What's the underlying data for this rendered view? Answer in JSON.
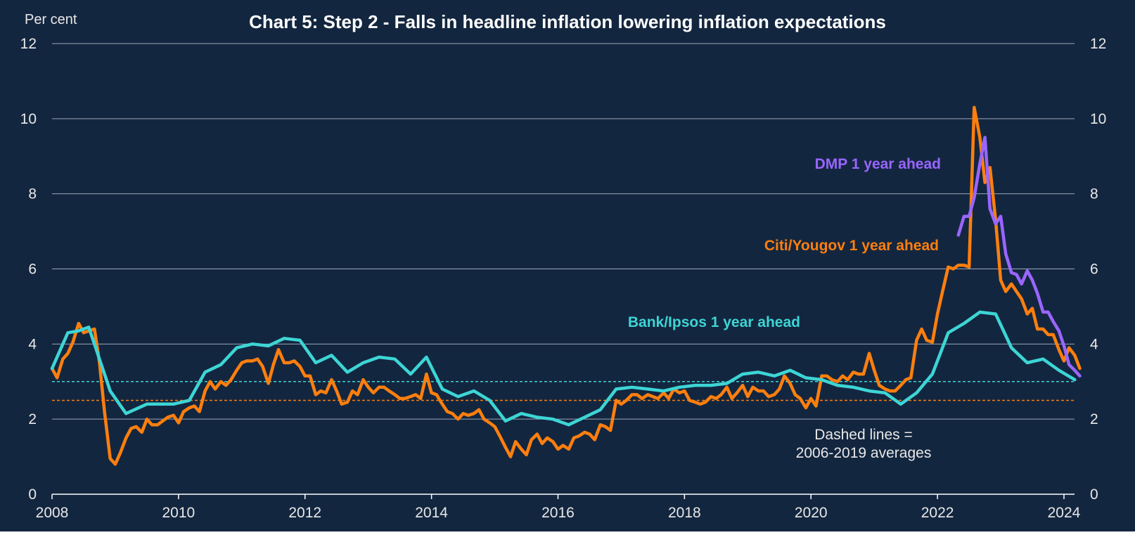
{
  "chart_data": {
    "type": "line",
    "title": "Chart 5: Step 2 - Falls in headline inflation lowering inflation expectations",
    "units_label": "Per cent",
    "xlim": [
      2008.0,
      2024.25
    ],
    "ylim": [
      0,
      12
    ],
    "x_ticks": [
      "2008",
      "2010",
      "2012",
      "2014",
      "2016",
      "2018",
      "2020",
      "2022",
      "2024"
    ],
    "y_ticks": [
      "0",
      "2",
      "4",
      "6",
      "8",
      "10",
      "12"
    ],
    "grid": true,
    "series": [
      {
        "name": "Citi/Yougov 1 year ahead",
        "color": "#ff7f0e",
        "points": [
          [
            2008.0,
            3.35
          ],
          [
            2008.08,
            3.1
          ],
          [
            2008.17,
            3.6
          ],
          [
            2008.25,
            3.75
          ],
          [
            2008.33,
            4.05
          ],
          [
            2008.42,
            4.55
          ],
          [
            2008.5,
            4.3
          ],
          [
            2008.58,
            4.35
          ],
          [
            2008.67,
            4.4
          ],
          [
            2008.75,
            3.5
          ],
          [
            2008.83,
            2.2
          ],
          [
            2008.92,
            0.95
          ],
          [
            2009.0,
            0.8
          ],
          [
            2009.08,
            1.1
          ],
          [
            2009.17,
            1.5
          ],
          [
            2009.25,
            1.75
          ],
          [
            2009.33,
            1.8
          ],
          [
            2009.42,
            1.65
          ],
          [
            2009.5,
            2.0
          ],
          [
            2009.58,
            1.85
          ],
          [
            2009.67,
            1.85
          ],
          [
            2009.75,
            1.95
          ],
          [
            2009.83,
            2.05
          ],
          [
            2009.92,
            2.1
          ],
          [
            2010.0,
            1.9
          ],
          [
            2010.08,
            2.2
          ],
          [
            2010.17,
            2.3
          ],
          [
            2010.25,
            2.35
          ],
          [
            2010.33,
            2.2
          ],
          [
            2010.42,
            2.75
          ],
          [
            2010.5,
            3.0
          ],
          [
            2010.58,
            2.8
          ],
          [
            2010.67,
            3.0
          ],
          [
            2010.75,
            2.9
          ],
          [
            2010.83,
            3.05
          ],
          [
            2010.92,
            3.3
          ],
          [
            2011.0,
            3.5
          ],
          [
            2011.08,
            3.55
          ],
          [
            2011.17,
            3.55
          ],
          [
            2011.25,
            3.6
          ],
          [
            2011.33,
            3.4
          ],
          [
            2011.42,
            2.95
          ],
          [
            2011.5,
            3.45
          ],
          [
            2011.58,
            3.85
          ],
          [
            2011.67,
            3.5
          ],
          [
            2011.75,
            3.5
          ],
          [
            2011.83,
            3.55
          ],
          [
            2011.92,
            3.4
          ],
          [
            2012.0,
            3.15
          ],
          [
            2012.08,
            3.15
          ],
          [
            2012.17,
            2.65
          ],
          [
            2012.25,
            2.75
          ],
          [
            2012.33,
            2.7
          ],
          [
            2012.42,
            3.05
          ],
          [
            2012.5,
            2.75
          ],
          [
            2012.58,
            2.4
          ],
          [
            2012.67,
            2.45
          ],
          [
            2012.75,
            2.75
          ],
          [
            2012.83,
            2.65
          ],
          [
            2012.92,
            3.05
          ],
          [
            2013.0,
            2.85
          ],
          [
            2013.08,
            2.7
          ],
          [
            2013.17,
            2.85
          ],
          [
            2013.25,
            2.85
          ],
          [
            2013.33,
            2.75
          ],
          [
            2013.42,
            2.65
          ],
          [
            2013.5,
            2.55
          ],
          [
            2013.58,
            2.55
          ],
          [
            2013.67,
            2.6
          ],
          [
            2013.75,
            2.65
          ],
          [
            2013.83,
            2.55
          ],
          [
            2013.92,
            3.2
          ],
          [
            2014.0,
            2.7
          ],
          [
            2014.08,
            2.65
          ],
          [
            2014.17,
            2.4
          ],
          [
            2014.25,
            2.2
          ],
          [
            2014.33,
            2.15
          ],
          [
            2014.42,
            2.0
          ],
          [
            2014.5,
            2.15
          ],
          [
            2014.58,
            2.1
          ],
          [
            2014.67,
            2.15
          ],
          [
            2014.75,
            2.25
          ],
          [
            2014.83,
            2.0
          ],
          [
            2014.92,
            1.9
          ],
          [
            2015.0,
            1.8
          ],
          [
            2015.08,
            1.55
          ],
          [
            2015.17,
            1.25
          ],
          [
            2015.25,
            1.0
          ],
          [
            2015.33,
            1.4
          ],
          [
            2015.42,
            1.2
          ],
          [
            2015.5,
            1.05
          ],
          [
            2015.58,
            1.45
          ],
          [
            2015.67,
            1.6
          ],
          [
            2015.75,
            1.35
          ],
          [
            2015.83,
            1.5
          ],
          [
            2015.92,
            1.4
          ],
          [
            2016.0,
            1.2
          ],
          [
            2016.08,
            1.3
          ],
          [
            2016.17,
            1.2
          ],
          [
            2016.25,
            1.5
          ],
          [
            2016.33,
            1.55
          ],
          [
            2016.42,
            1.65
          ],
          [
            2016.5,
            1.6
          ],
          [
            2016.58,
            1.45
          ],
          [
            2016.67,
            1.85
          ],
          [
            2016.75,
            1.8
          ],
          [
            2016.83,
            1.7
          ],
          [
            2016.92,
            2.5
          ],
          [
            2017.0,
            2.4
          ],
          [
            2017.08,
            2.5
          ],
          [
            2017.17,
            2.65
          ],
          [
            2017.25,
            2.65
          ],
          [
            2017.33,
            2.55
          ],
          [
            2017.42,
            2.65
          ],
          [
            2017.5,
            2.6
          ],
          [
            2017.58,
            2.55
          ],
          [
            2017.67,
            2.7
          ],
          [
            2017.75,
            2.55
          ],
          [
            2017.83,
            2.8
          ],
          [
            2017.92,
            2.7
          ],
          [
            2018.0,
            2.75
          ],
          [
            2018.08,
            2.5
          ],
          [
            2018.17,
            2.45
          ],
          [
            2018.25,
            2.4
          ],
          [
            2018.33,
            2.45
          ],
          [
            2018.42,
            2.6
          ],
          [
            2018.5,
            2.55
          ],
          [
            2018.58,
            2.65
          ],
          [
            2018.67,
            2.85
          ],
          [
            2018.75,
            2.55
          ],
          [
            2018.83,
            2.7
          ],
          [
            2018.92,
            2.9
          ],
          [
            2019.0,
            2.6
          ],
          [
            2019.08,
            2.85
          ],
          [
            2019.17,
            2.75
          ],
          [
            2019.25,
            2.75
          ],
          [
            2019.33,
            2.6
          ],
          [
            2019.42,
            2.65
          ],
          [
            2019.5,
            2.8
          ],
          [
            2019.58,
            3.15
          ],
          [
            2019.67,
            2.95
          ],
          [
            2019.75,
            2.65
          ],
          [
            2019.83,
            2.55
          ],
          [
            2019.92,
            2.3
          ],
          [
            2020.0,
            2.55
          ],
          [
            2020.08,
            2.35
          ],
          [
            2020.17,
            3.15
          ],
          [
            2020.25,
            3.15
          ],
          [
            2020.33,
            3.05
          ],
          [
            2020.42,
            3.0
          ],
          [
            2020.5,
            3.15
          ],
          [
            2020.58,
            3.05
          ],
          [
            2020.67,
            3.25
          ],
          [
            2020.75,
            3.2
          ],
          [
            2020.83,
            3.2
          ],
          [
            2020.92,
            3.75
          ],
          [
            2021.0,
            3.3
          ],
          [
            2021.08,
            2.9
          ],
          [
            2021.17,
            2.8
          ],
          [
            2021.25,
            2.75
          ],
          [
            2021.33,
            2.75
          ],
          [
            2021.42,
            2.9
          ],
          [
            2021.5,
            3.05
          ],
          [
            2021.58,
            3.1
          ],
          [
            2021.67,
            4.1
          ],
          [
            2021.75,
            4.4
          ],
          [
            2021.83,
            4.1
          ],
          [
            2021.92,
            4.05
          ],
          [
            2022.0,
            4.8
          ],
          [
            2022.08,
            5.4
          ],
          [
            2022.17,
            6.05
          ],
          [
            2022.25,
            6.0
          ],
          [
            2022.33,
            6.1
          ],
          [
            2022.42,
            6.1
          ],
          [
            2022.5,
            6.05
          ],
          [
            2022.58,
            10.3
          ],
          [
            2022.67,
            9.5
          ],
          [
            2022.75,
            8.3
          ],
          [
            2022.83,
            8.7
          ],
          [
            2022.92,
            7.3
          ],
          [
            2023.0,
            5.7
          ],
          [
            2023.08,
            5.4
          ],
          [
            2023.17,
            5.6
          ],
          [
            2023.25,
            5.4
          ],
          [
            2023.33,
            5.2
          ],
          [
            2023.42,
            4.8
          ],
          [
            2023.5,
            4.95
          ],
          [
            2023.58,
            4.4
          ],
          [
            2023.67,
            4.4
          ],
          [
            2023.75,
            4.25
          ],
          [
            2023.83,
            4.25
          ],
          [
            2023.92,
            3.85
          ],
          [
            2024.0,
            3.55
          ],
          [
            2024.08,
            3.9
          ],
          [
            2024.17,
            3.7
          ],
          [
            2024.25,
            3.35
          ]
        ]
      },
      {
        "name": "Bank/Ipsos 1 year ahead",
        "color": "#3dd5d5",
        "points": [
          [
            2008.0,
            3.35
          ],
          [
            2008.25,
            4.3
          ],
          [
            2008.42,
            4.35
          ],
          [
            2008.58,
            4.45
          ],
          [
            2008.92,
            2.75
          ],
          [
            2009.17,
            2.15
          ],
          [
            2009.5,
            2.4
          ],
          [
            2009.92,
            2.4
          ],
          [
            2010.17,
            2.5
          ],
          [
            2010.42,
            3.25
          ],
          [
            2010.67,
            3.45
          ],
          [
            2010.92,
            3.9
          ],
          [
            2011.17,
            4.0
          ],
          [
            2011.42,
            3.95
          ],
          [
            2011.67,
            4.15
          ],
          [
            2011.92,
            4.1
          ],
          [
            2012.17,
            3.5
          ],
          [
            2012.42,
            3.7
          ],
          [
            2012.67,
            3.25
          ],
          [
            2012.92,
            3.5
          ],
          [
            2013.17,
            3.65
          ],
          [
            2013.42,
            3.6
          ],
          [
            2013.67,
            3.2
          ],
          [
            2013.92,
            3.65
          ],
          [
            2014.17,
            2.8
          ],
          [
            2014.42,
            2.6
          ],
          [
            2014.67,
            2.75
          ],
          [
            2014.92,
            2.5
          ],
          [
            2015.17,
            1.95
          ],
          [
            2015.42,
            2.15
          ],
          [
            2015.67,
            2.05
          ],
          [
            2015.92,
            2.0
          ],
          [
            2016.17,
            1.85
          ],
          [
            2016.42,
            2.05
          ],
          [
            2016.67,
            2.25
          ],
          [
            2016.92,
            2.8
          ],
          [
            2017.17,
            2.85
          ],
          [
            2017.42,
            2.8
          ],
          [
            2017.67,
            2.75
          ],
          [
            2017.92,
            2.85
          ],
          [
            2018.17,
            2.9
          ],
          [
            2018.42,
            2.9
          ],
          [
            2018.67,
            2.95
          ],
          [
            2018.92,
            3.2
          ],
          [
            2019.17,
            3.25
          ],
          [
            2019.42,
            3.15
          ],
          [
            2019.67,
            3.3
          ],
          [
            2019.92,
            3.1
          ],
          [
            2020.17,
            3.05
          ],
          [
            2020.42,
            2.9
          ],
          [
            2020.67,
            2.85
          ],
          [
            2020.92,
            2.75
          ],
          [
            2021.17,
            2.7
          ],
          [
            2021.42,
            2.4
          ],
          [
            2021.67,
            2.7
          ],
          [
            2021.92,
            3.2
          ],
          [
            2022.17,
            4.3
          ],
          [
            2022.42,
            4.55
          ],
          [
            2022.67,
            4.85
          ],
          [
            2022.92,
            4.8
          ],
          [
            2023.17,
            3.9
          ],
          [
            2023.42,
            3.5
          ],
          [
            2023.67,
            3.6
          ],
          [
            2023.92,
            3.3
          ],
          [
            2024.17,
            3.05
          ]
        ]
      },
      {
        "name": "DMP 1 year ahead",
        "color": "#9966ff",
        "points": [
          [
            2022.33,
            6.9
          ],
          [
            2022.42,
            7.4
          ],
          [
            2022.5,
            7.4
          ],
          [
            2022.58,
            7.9
          ],
          [
            2022.67,
            8.8
          ],
          [
            2022.75,
            9.5
          ],
          [
            2022.83,
            7.6
          ],
          [
            2022.92,
            7.2
          ],
          [
            2023.0,
            7.4
          ],
          [
            2023.08,
            6.4
          ],
          [
            2023.17,
            5.9
          ],
          [
            2023.25,
            5.85
          ],
          [
            2023.33,
            5.6
          ],
          [
            2023.42,
            5.95
          ],
          [
            2023.5,
            5.7
          ],
          [
            2023.58,
            5.35
          ],
          [
            2023.67,
            4.85
          ],
          [
            2023.75,
            4.85
          ],
          [
            2023.83,
            4.6
          ],
          [
            2023.92,
            4.35
          ],
          [
            2024.0,
            3.95
          ],
          [
            2024.08,
            3.45
          ],
          [
            2024.17,
            3.3
          ],
          [
            2024.25,
            3.15
          ]
        ]
      }
    ],
    "reference_lines": [
      {
        "value": 3.0,
        "color": "#3dd5d5",
        "style": "dashed"
      },
      {
        "value": 2.5,
        "color": "#ff7f0e",
        "style": "dashed"
      }
    ],
    "annotations": {
      "dmp_label": "DMP 1 year ahead",
      "citi_label": "Citi/Yougov 1 year ahead",
      "ipsos_label": "Bank/Ipsos 1 year ahead",
      "dashed_note_line1": "Dashed lines =",
      "dashed_note_line2": "2006-2019 averages"
    },
    "background": "#13263f"
  }
}
